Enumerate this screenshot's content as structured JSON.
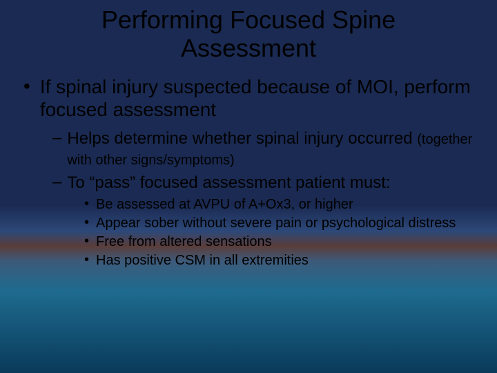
{
  "styling": {
    "slide_width": 720,
    "slide_height": 540,
    "font_family": "Arial",
    "title_fontsize": 36,
    "level1_fontsize": 28,
    "level2_fontsize": 24,
    "level2_paren_fontsize": 20,
    "level3_fontsize": 20,
    "text_color": "#000000",
    "background_gradient": [
      {
        "stop": 0,
        "color": "#1a2a52"
      },
      {
        "stop": 55,
        "color": "#1a2a52"
      },
      {
        "stop": 62,
        "color": "#2d4878"
      },
      {
        "stop": 66,
        "color": "#5a3d3a"
      },
      {
        "stop": 70,
        "color": "#3d5a7a"
      },
      {
        "stop": 78,
        "color": "#1e6b8f"
      },
      {
        "stop": 100,
        "color": "#0a3a5a"
      }
    ]
  },
  "title_line1": "Performing Focused Spine",
  "title_line2": "Assessment",
  "l1_text": "If spinal injury suspected because of MOI, perform focused assessment",
  "l2a_main": "Helps determine whether spinal injury occurred ",
  "l2a_paren": "(together with other signs/symptoms)",
  "l2b_text": "To “pass” focused assessment patient must:",
  "l3a_text": "Be assessed at AVPU of A+Ox3, or higher",
  "l3b_text": "Appear sober without severe pain or psychological distress",
  "l3c_text": "Free from altered sensations",
  "l3d_text": "Has positive CSM in all extremities",
  "bullet_l1": "•",
  "bullet_l2": "–",
  "bullet_l3": "•"
}
